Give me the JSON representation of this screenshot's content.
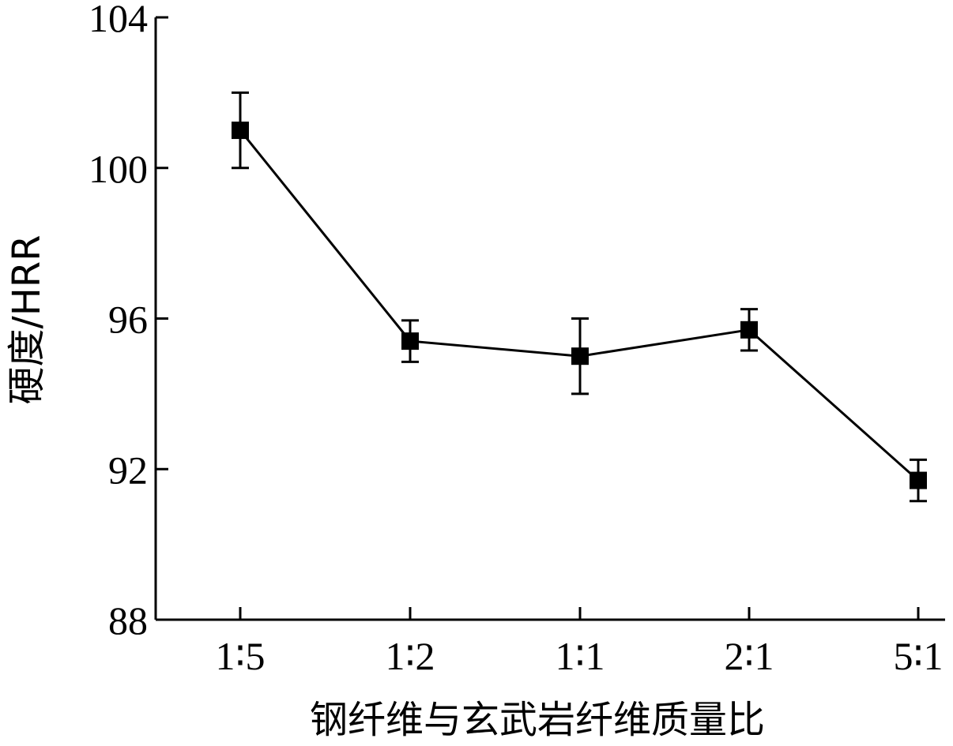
{
  "chart_data": {
    "type": "line",
    "categories": [
      "1∶5",
      "1∶2",
      "1∶1",
      "2∶1",
      "5∶1"
    ],
    "series": [
      {
        "values": [
          101.0,
          95.4,
          95.0,
          95.7,
          91.7
        ],
        "error": [
          1.0,
          0.55,
          1.0,
          0.55,
          0.55
        ],
        "marker": "square",
        "color": "#000000"
      }
    ],
    "xlabel": "钢纤维与玄武岩纤维质量比",
    "ylabel": "硬度/HRR",
    "ylim": [
      88,
      104
    ],
    "yticks": [
      88,
      92,
      96,
      100,
      104
    ],
    "grid": false
  }
}
